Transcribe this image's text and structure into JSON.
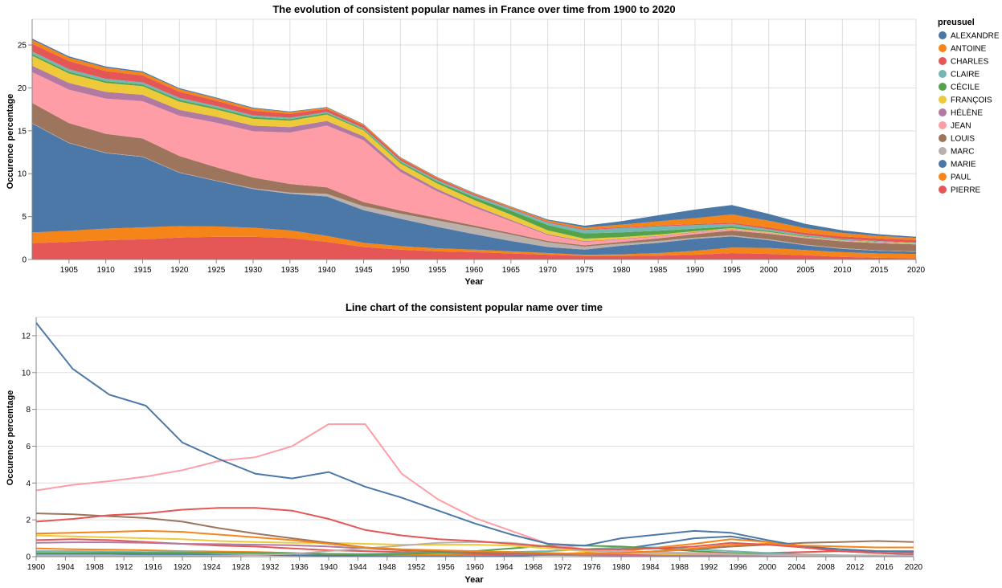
{
  "colors": {
    "ALEXANDRE": "#4c78a8",
    "ANTOINE": "#f58518",
    "CHARLES": "#e45756",
    "CLAIRE": "#72b7b2",
    "CÉCILE": "#54a24b",
    "FRANÇOIS": "#eeca3b",
    "HÉLÈNE": "#b279a2",
    "JEAN": "#ff9da6",
    "LOUIS": "#9d755d",
    "MARC": "#bab0ac",
    "MARIE": "#4c78a8",
    "PAUL": "#f58518",
    "PIERRE": "#e45756"
  },
  "legend": {
    "title": "preusuel",
    "entries": [
      "ALEXANDRE",
      "ANTOINE",
      "CHARLES",
      "CLAIRE",
      "CÉCILE",
      "FRANÇOIS",
      "HÉLÈNE",
      "JEAN",
      "LOUIS",
      "MARC",
      "MARIE",
      "PAUL",
      "PIERRE"
    ]
  },
  "chart_data": [
    {
      "type": "area",
      "title": "The evolution of consistent popular names in France over time from 1900 to 2020",
      "xlabel": "Year",
      "ylabel": "Occurence percentage",
      "xlim": [
        1900,
        2020
      ],
      "ylim": [
        0,
        28
      ],
      "x_ticks": [
        1905,
        1910,
        1915,
        1920,
        1925,
        1930,
        1935,
        1940,
        1945,
        1950,
        1955,
        1960,
        1965,
        1970,
        1975,
        1980,
        1985,
        1990,
        1995,
        2000,
        2005,
        2010,
        2015,
        2020
      ],
      "y_ticks": [
        0,
        5,
        10,
        15,
        20,
        25
      ],
      "stack_order": [
        "PIERRE",
        "PAUL",
        "MARIE",
        "MARC",
        "LOUIS",
        "JEAN",
        "HÉLÈNE",
        "FRANÇOIS",
        "CÉCILE",
        "CLAIRE",
        "CHARLES",
        "ANTOINE",
        "ALEXANDRE"
      ],
      "grid": true,
      "legend_position": "right"
    },
    {
      "type": "line",
      "title": "Line chart of the consistent popular name over time",
      "xlabel": "Year",
      "ylabel": "Occurence percentage",
      "xlim": [
        1900,
        2020
      ],
      "ylim": [
        0,
        13
      ],
      "x_ticks": [
        1900,
        1904,
        1908,
        1912,
        1916,
        1920,
        1924,
        1928,
        1932,
        1936,
        1940,
        1944,
        1948,
        1952,
        1956,
        1960,
        1964,
        1968,
        1972,
        1976,
        1980,
        1984,
        1988,
        1992,
        1996,
        2000,
        2004,
        2008,
        2012,
        2016,
        2020
      ],
      "y_ticks": [
        0,
        2,
        4,
        6,
        8,
        10,
        12
      ],
      "grid": true
    }
  ],
  "series": {
    "x": [
      1900,
      1905,
      1910,
      1915,
      1920,
      1925,
      1930,
      1935,
      1940,
      1945,
      1950,
      1955,
      1960,
      1965,
      1970,
      1975,
      1980,
      1985,
      1990,
      1995,
      2000,
      2005,
      2010,
      2015,
      2020
    ],
    "values": {
      "PIERRE": [
        1.9,
        2.05,
        2.25,
        2.35,
        2.55,
        2.65,
        2.65,
        2.5,
        2.05,
        1.45,
        1.15,
        0.95,
        0.85,
        0.7,
        0.55,
        0.4,
        0.4,
        0.45,
        0.55,
        0.75,
        0.65,
        0.5,
        0.3,
        0.2,
        0.15
      ],
      "PAUL": [
        1.25,
        1.3,
        1.35,
        1.4,
        1.35,
        1.2,
        1.05,
        0.9,
        0.7,
        0.5,
        0.4,
        0.35,
        0.3,
        0.25,
        0.2,
        0.15,
        0.2,
        0.3,
        0.45,
        0.65,
        0.7,
        0.6,
        0.55,
        0.5,
        0.5
      ],
      "MARIE": [
        12.7,
        10.2,
        8.8,
        8.2,
        6.2,
        5.3,
        4.5,
        4.25,
        4.6,
        3.8,
        3.2,
        2.5,
        1.8,
        1.2,
        0.7,
        0.6,
        1.0,
        1.2,
        1.4,
        1.3,
        0.9,
        0.55,
        0.4,
        0.3,
        0.25
      ],
      "MARC": [
        0.05,
        0.05,
        0.05,
        0.05,
        0.05,
        0.05,
        0.1,
        0.15,
        0.3,
        0.45,
        0.6,
        0.75,
        0.8,
        0.75,
        0.55,
        0.35,
        0.25,
        0.2,
        0.15,
        0.12,
        0.1,
        0.08,
        0.06,
        0.05,
        0.05
      ],
      "LOUIS": [
        2.35,
        2.3,
        2.2,
        2.1,
        1.9,
        1.55,
        1.25,
        1.0,
        0.75,
        0.5,
        0.35,
        0.28,
        0.22,
        0.18,
        0.15,
        0.15,
        0.2,
        0.3,
        0.4,
        0.55,
        0.65,
        0.75,
        0.8,
        0.85,
        0.8
      ],
      "JEAN": [
        3.6,
        3.9,
        4.1,
        4.35,
        4.7,
        5.2,
        5.4,
        6.0,
        7.2,
        7.2,
        4.5,
        3.1,
        2.1,
        1.4,
        0.7,
        0.4,
        0.3,
        0.25,
        0.2,
        0.15,
        0.1,
        0.08,
        0.06,
        0.05,
        0.05
      ],
      "HÉLÈNE": [
        0.75,
        0.78,
        0.78,
        0.75,
        0.7,
        0.68,
        0.65,
        0.62,
        0.55,
        0.45,
        0.35,
        0.28,
        0.22,
        0.15,
        0.1,
        0.08,
        0.06,
        0.05,
        0.05,
        0.05,
        0.04,
        0.04,
        0.04,
        0.04,
        0.04
      ],
      "FRANÇOIS": [
        1.15,
        1.1,
        1.05,
        1.0,
        0.95,
        0.85,
        0.8,
        0.75,
        0.75,
        0.7,
        0.65,
        0.65,
        0.65,
        0.6,
        0.45,
        0.3,
        0.2,
        0.15,
        0.1,
        0.08,
        0.06,
        0.05,
        0.04,
        0.04,
        0.04
      ],
      "CÉCILE": [
        0.2,
        0.2,
        0.2,
        0.2,
        0.2,
        0.2,
        0.2,
        0.18,
        0.15,
        0.12,
        0.15,
        0.2,
        0.3,
        0.45,
        0.6,
        0.6,
        0.55,
        0.45,
        0.3,
        0.2,
        0.12,
        0.08,
        0.06,
        0.05,
        0.04
      ],
      "CLAIRE": [
        0.3,
        0.3,
        0.28,
        0.25,
        0.25,
        0.22,
        0.2,
        0.18,
        0.15,
        0.15,
        0.18,
        0.2,
        0.22,
        0.25,
        0.3,
        0.4,
        0.5,
        0.5,
        0.4,
        0.3,
        0.2,
        0.12,
        0.08,
        0.06,
        0.05
      ],
      "CHARLES": [
        0.9,
        0.95,
        0.9,
        0.8,
        0.7,
        0.6,
        0.55,
        0.45,
        0.35,
        0.3,
        0.25,
        0.2,
        0.15,
        0.1,
        0.1,
        0.1,
        0.1,
        0.1,
        0.12,
        0.15,
        0.2,
        0.25,
        0.3,
        0.3,
        0.3
      ],
      "ANTOINE": [
        0.45,
        0.4,
        0.38,
        0.35,
        0.3,
        0.28,
        0.25,
        0.2,
        0.15,
        0.12,
        0.1,
        0.1,
        0.1,
        0.1,
        0.15,
        0.2,
        0.3,
        0.5,
        0.7,
        0.95,
        0.8,
        0.55,
        0.4,
        0.3,
        0.25
      ],
      "ALEXANDRE": [
        0.15,
        0.15,
        0.15,
        0.12,
        0.12,
        0.1,
        0.1,
        0.08,
        0.06,
        0.05,
        0.05,
        0.05,
        0.05,
        0.05,
        0.1,
        0.2,
        0.4,
        0.7,
        1.0,
        1.1,
        0.8,
        0.5,
        0.3,
        0.2,
        0.12
      ]
    }
  }
}
